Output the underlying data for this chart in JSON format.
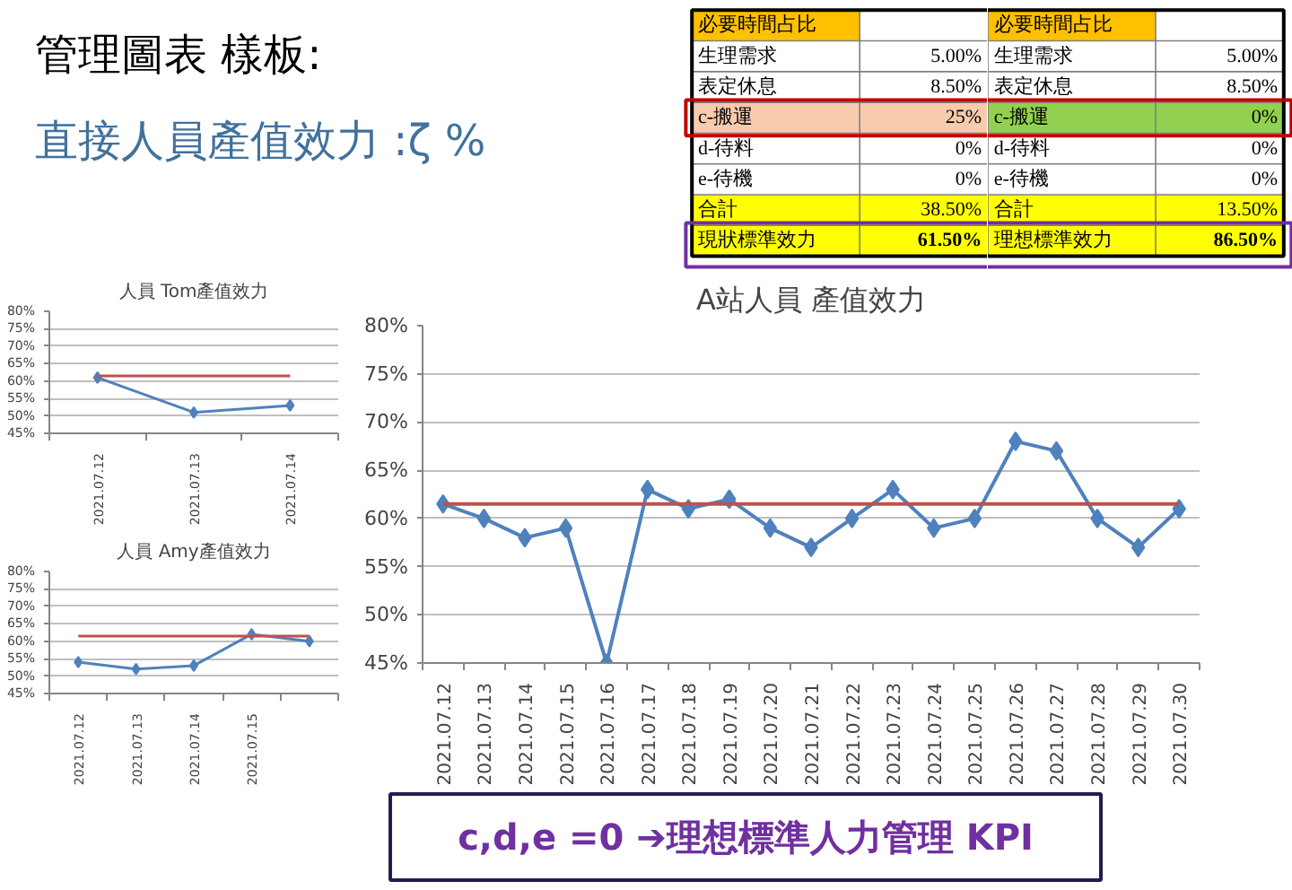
{
  "chart_data": [
    {
      "type": "other",
      "title": "管理圖表 樣板:",
      "subtitle": "直接人員產值效力 :ζ %"
    },
    {
      "type": "other",
      "title": "必要時間占比",
      "categories": [
        "生理需求",
        "表定休息",
        "c-搬運",
        "d-待料",
        "e-待機",
        "合計",
        "現狀標準效力"
      ],
      "value_labels": [
        "5.00%",
        "8.50%",
        "25%",
        "0%",
        "0%",
        "38.50%",
        "61.50%"
      ],
      "colors": [
        "#ffffff",
        "#ffffff",
        "#f8cbad",
        "#ffffff",
        "#ffffff",
        "#ffff00",
        "#ffff00"
      ]
    },
    {
      "type": "other",
      "title": "必要時間占比",
      "categories": [
        "生理需求",
        "表定休息",
        "c-搬運",
        "d-待料",
        "e-待機",
        "合計",
        "理想標準效力"
      ],
      "value_labels": [
        "5.00%",
        "8.50%",
        "0%",
        "0%",
        "0%",
        "13.50%",
        "86.50%"
      ],
      "colors": [
        "#ffffff",
        "#ffffff",
        "#92d050",
        "#ffffff",
        "#ffffff",
        "#ffff00",
        "#ffff00"
      ]
    },
    {
      "type": "line",
      "title": "人員 Tom產值效力",
      "categories": [
        "2021.07.12",
        "2021.07.13",
        "2021.07.14"
      ],
      "series": [
        {
          "color": "#4f81bd",
          "values": [
            61,
            51,
            53
          ],
          "marker": "diamond"
        },
        {
          "color": "#c0504d",
          "values": [
            61.5,
            61.5,
            61.5
          ],
          "marker": "none"
        }
      ],
      "ylim": [
        45,
        80
      ],
      "yticks": [
        {
          "value": 45,
          "label": "45%"
        },
        {
          "value": 50,
          "label": "50%"
        },
        {
          "value": 55,
          "label": "55%"
        },
        {
          "value": 60,
          "label": "60%"
        },
        {
          "value": 65,
          "label": "65%"
        },
        {
          "value": 70,
          "label": "70%"
        },
        {
          "value": 75,
          "label": "75%"
        },
        {
          "value": 80,
          "label": "80%"
        }
      ],
      "grid": "y"
    },
    {
      "type": "line",
      "title": "人員 Amy產值效力",
      "categories": [
        "2021.07.12",
        "2021.07.13",
        "2021.07.14",
        "2021.07.15",
        null
      ],
      "series": [
        {
          "color": "#4f81bd",
          "values": [
            54,
            52,
            53,
            62,
            60
          ],
          "marker": "diamond"
        },
        {
          "color": "#c0504d",
          "values": [
            61.5,
            61.5,
            61.5,
            61.5,
            61.5
          ],
          "marker": "none"
        }
      ],
      "ylim": [
        45,
        80
      ],
      "yticks": [
        {
          "value": 45,
          "label": "45%"
        },
        {
          "value": 50,
          "label": "50%"
        },
        {
          "value": 55,
          "label": "55%"
        },
        {
          "value": 60,
          "label": "60%"
        },
        {
          "value": 65,
          "label": "65%"
        },
        {
          "value": 70,
          "label": "70%"
        },
        {
          "value": 75,
          "label": "75%"
        },
        {
          "value": 80,
          "label": "80%"
        }
      ],
      "grid": "y"
    },
    {
      "type": "line",
      "title": "A站人員 產值效力",
      "categories": [
        "2021.07.12",
        "2021.07.13",
        "2021.07.14",
        "2021.07.15",
        "2021.07.16",
        "2021.07.17",
        "2021.07.18",
        "2021.07.19",
        "2021.07.20",
        "2021.07.21",
        "2021.07.22",
        "2021.07.23",
        "2021.07.24",
        "2021.07.25",
        "2021.07.26",
        "2021.07.27",
        "2021.07.28",
        "2021.07.29",
        "2021.07.30"
      ],
      "series": [
        {
          "color": "#4f81bd",
          "values": [
            61.5,
            60,
            58,
            59,
            45,
            63,
            61,
            62,
            59,
            57,
            60,
            63,
            59,
            60,
            68,
            67,
            60,
            57,
            61
          ],
          "marker": "diamond"
        },
        {
          "color": "#c0504d",
          "values": [
            61.5,
            61.5,
            61.5,
            61.5,
            61.5,
            61.5,
            61.5,
            61.5,
            61.5,
            61.5,
            61.5,
            61.5,
            61.5,
            61.5,
            61.5,
            61.5,
            61.5,
            61.5,
            61.5
          ],
          "marker": "none"
        }
      ],
      "ylim": [
        45,
        80
      ],
      "yticks": [
        {
          "value": 45,
          "label": "45%"
        },
        {
          "value": 50,
          "label": "50%"
        },
        {
          "value": 55,
          "label": "55%"
        },
        {
          "value": 60,
          "label": "60%"
        },
        {
          "value": 65,
          "label": "65%"
        },
        {
          "value": 70,
          "label": "70%"
        },
        {
          "value": 75,
          "label": "75%"
        },
        {
          "value": 80,
          "label": "80%"
        }
      ],
      "grid": "y"
    },
    {
      "type": "other",
      "annotations": [
        "c,d,e =0 ➔理想標準人力管理 KPI"
      ]
    }
  ]
}
